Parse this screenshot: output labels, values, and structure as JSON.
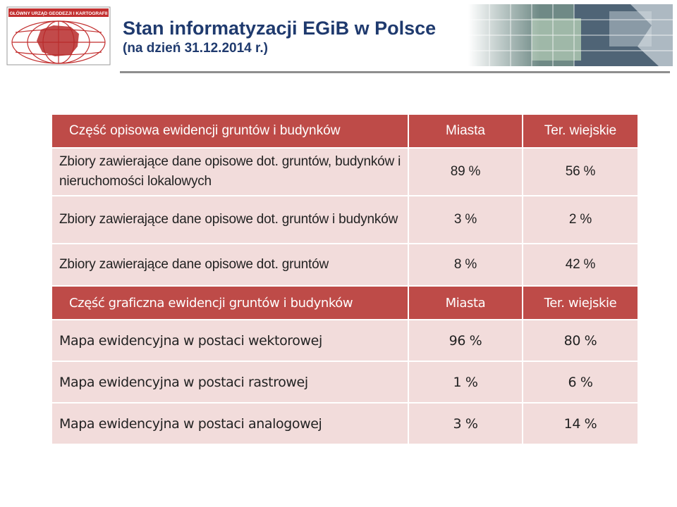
{
  "header": {
    "logo_text": "GŁÓWNY URZĄD GEODEZJI I KARTOGRAFII",
    "title": "Stan informatyzacji EGiB w Polsce",
    "subtitle": "(na dzień 31.12.2014 r.)"
  },
  "table": {
    "section1": {
      "header": {
        "label": "Część opisowa ewidencji gruntów i budynków",
        "col1": "Miasta",
        "col2": "Ter. wiejskie"
      },
      "rows": [
        {
          "label": "Zbiory zawierające dane opisowe dot. gruntów, budynków i nieruchomości lokalowych",
          "col1": "89 %",
          "col2": "56 %"
        },
        {
          "label": "Zbiory zawierające dane opisowe dot. gruntów i budynków",
          "col1": "3 %",
          "col2": "2 %"
        },
        {
          "label": "Zbiory zawierające dane opisowe dot. gruntów",
          "col1": "8 %",
          "col2": "42 %"
        }
      ]
    },
    "section2": {
      "header": {
        "label": "Część graficzna ewidencji gruntów i budynków",
        "col1": "Miasta",
        "col2": "Ter. wiejskie"
      },
      "rows": [
        {
          "label": "Mapa ewidencyjna w postaci wektorowej",
          "col1": "96 %",
          "col2": "80 %"
        },
        {
          "label": "Mapa ewidencyjna w postaci rastrowej",
          "col1": "1 %",
          "col2": "6 %"
        },
        {
          "label": "Mapa ewidencyjna w postaci analogowej",
          "col1": "3 %",
          "col2": "14 %"
        }
      ]
    }
  },
  "colors": {
    "header_bg": "#be4b48",
    "row_bg": "#f2dcdb",
    "title": "#1f3a6e"
  }
}
